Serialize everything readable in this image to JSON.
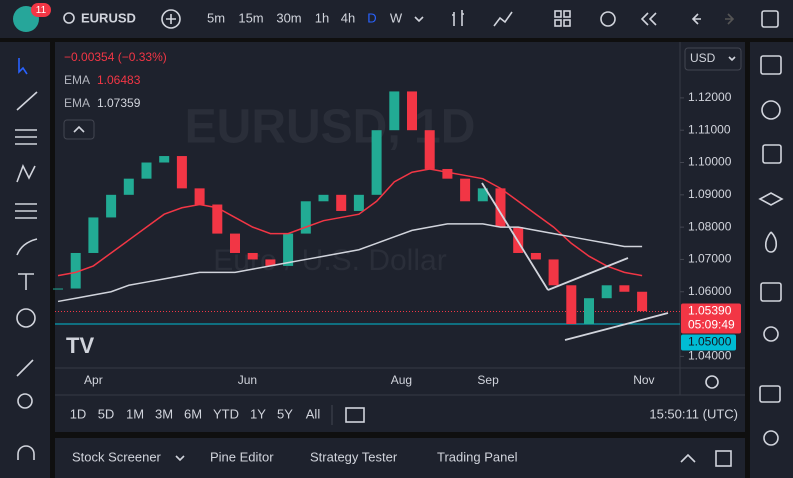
{
  "toolbar": {
    "badge": "11",
    "symbol": "EURUSD",
    "timeframes": [
      "5m",
      "15m",
      "30m",
      "1h",
      "4h",
      "D",
      "W"
    ]
  },
  "legend": {
    "change": "−0.00354 (−0.33%)",
    "ema_label": "EMA",
    "ema1_value": "1.06483",
    "ema2_value": "1.07359"
  },
  "watermark": {
    "title": "EURUSD, 1D",
    "subtitle": "Euro / U.S. Dollar"
  },
  "currency": "USD",
  "price_tag": {
    "price": "1.05390",
    "countdown": "05:09:49"
  },
  "level_tag": "1.05000",
  "chart_data": {
    "type": "candlestick",
    "categories": [
      null,
      null,
      null,
      null,
      null,
      null,
      null,
      null,
      null,
      null,
      null,
      null,
      null,
      null,
      null,
      null,
      null,
      null,
      null,
      null,
      null,
      null,
      null,
      null,
      null,
      null,
      null,
      null,
      null,
      null,
      null,
      null,
      null,
      null
    ],
    "series": [
      {
        "name": "EURUSD",
        "color": "#22ab94",
        "down_color": "#f23645",
        "values": [
          1.061,
          1.072,
          1.083,
          1.09,
          1.095,
          1.1,
          1.102,
          1.092,
          1.087,
          1.078,
          1.072,
          1.07,
          1.068,
          1.078,
          1.088,
          1.09,
          1.085,
          1.09,
          1.11,
          1.122,
          1.11,
          1.098,
          1.095,
          1.088,
          1.092,
          1.08,
          1.072,
          1.07,
          1.062,
          1.05,
          1.058,
          1.062,
          1.06,
          1.054
        ]
      },
      {
        "name": "EMA",
        "color": "#f23645",
        "values": [
          1.065,
          1.066,
          1.068,
          1.072,
          1.076,
          1.08,
          1.084,
          1.086,
          1.087,
          1.086,
          1.083,
          1.08,
          1.078,
          1.078,
          1.08,
          1.082,
          1.083,
          1.084,
          1.088,
          1.094,
          1.097,
          1.098,
          1.097,
          1.096,
          1.095,
          1.092,
          1.088,
          1.084,
          1.08,
          1.075,
          1.071,
          1.068,
          1.066,
          1.065
        ]
      },
      {
        "name": "EMA",
        "color": "#d1d4dc",
        "values": [
          1.057,
          1.058,
          1.059,
          1.06,
          1.062,
          1.063,
          1.064,
          1.065,
          1.066,
          1.066,
          1.066,
          1.067,
          1.068,
          1.069,
          1.07,
          1.071,
          1.072,
          1.073,
          1.075,
          1.077,
          1.079,
          1.08,
          1.081,
          1.081,
          1.081,
          1.08,
          1.08,
          1.079,
          1.078,
          1.077,
          1.076,
          1.075,
          1.074,
          1.074
        ]
      }
    ],
    "current_price": 1.0539,
    "level": 1.05,
    "ylim": [
      1.0364,
      1.1373
    ],
    "yticks": [
      {
        "value": 1.12,
        "label": "1.12000"
      },
      {
        "value": 1.11,
        "label": "1.11000"
      },
      {
        "value": 1.1,
        "label": "1.10000"
      },
      {
        "value": 1.09,
        "label": "1.09000"
      },
      {
        "value": 1.08,
        "label": "1.08000"
      },
      {
        "value": 1.07,
        "label": "1.07000"
      },
      {
        "value": 1.06,
        "label": "1.06000"
      },
      {
        "value": 1.04,
        "label": "1.04000"
      }
    ],
    "xticks": [
      {
        "value": 2,
        "label": "Apr"
      },
      {
        "value": 10.7,
        "label": "Jun"
      },
      {
        "value": 19.4,
        "label": "Aug"
      },
      {
        "value": 24.3,
        "label": "Sep"
      },
      {
        "value": 33.1,
        "label": "Nov"
      }
    ]
  },
  "ranges": [
    "1D",
    "5D",
    "1M",
    "3M",
    "6M",
    "YTD",
    "1Y",
    "5Y",
    "All"
  ],
  "clock": "15:50:11 (UTC)",
  "bottom_panel": {
    "tabs": [
      "Stock Screener",
      "Pine Editor",
      "Strategy Tester",
      "Trading Panel"
    ]
  }
}
